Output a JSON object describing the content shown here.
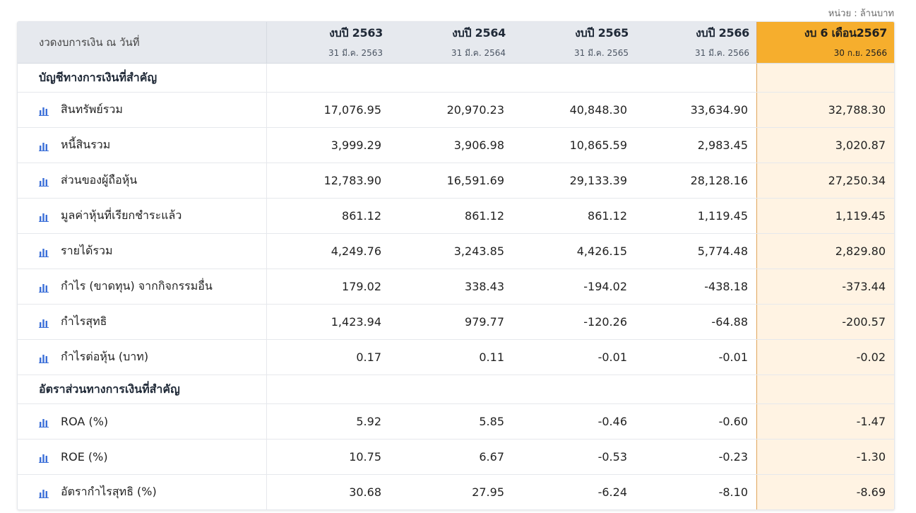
{
  "unit_label": "หน่วย : ล้านบาท",
  "header": {
    "period_label": "งวดงบการเงิน ณ วันที่",
    "columns": [
      {
        "year": "งบปี 2563",
        "date": "31 มี.ค. 2563"
      },
      {
        "year": "งบปี 2564",
        "date": "31 มี.ค. 2564"
      },
      {
        "year": "งบปี 2565",
        "date": "31 มี.ค. 2565"
      },
      {
        "year": "งบปี 2566",
        "date": "31 มี.ค. 2566"
      },
      {
        "year": "งบ 6 เดือน2567",
        "date": "30 ก.ย. 2566"
      }
    ]
  },
  "sections": [
    {
      "title": "บัญชีทางการเงินที่สำคัญ",
      "rows": [
        {
          "label": "สินทรัพย์รวม",
          "values": [
            "17,076.95",
            "20,970.23",
            "40,848.30",
            "33,634.90",
            "32,788.30"
          ]
        },
        {
          "label": "หนี้สินรวม",
          "values": [
            "3,999.29",
            "3,906.98",
            "10,865.59",
            "2,983.45",
            "3,020.87"
          ]
        },
        {
          "label": "ส่วนของผู้ถือหุ้น",
          "values": [
            "12,783.90",
            "16,591.69",
            "29,133.39",
            "28,128.16",
            "27,250.34"
          ]
        },
        {
          "label": "มูลค่าหุ้นที่เรียกชำระแล้ว",
          "values": [
            "861.12",
            "861.12",
            "861.12",
            "1,119.45",
            "1,119.45"
          ]
        },
        {
          "label": "รายได้รวม",
          "values": [
            "4,249.76",
            "3,243.85",
            "4,426.15",
            "5,774.48",
            "2,829.80"
          ]
        },
        {
          "label": "กำไร (ขาดทุน) จากกิจกรรมอื่น",
          "values": [
            "179.02",
            "338.43",
            "-194.02",
            "-438.18",
            "-373.44"
          ]
        },
        {
          "label": "กำไรสุทธิ",
          "values": [
            "1,423.94",
            "979.77",
            "-120.26",
            "-64.88",
            "-200.57"
          ]
        },
        {
          "label": "กำไรต่อหุ้น (บาท)",
          "values": [
            "0.17",
            "0.11",
            "-0.01",
            "-0.01",
            "-0.02"
          ]
        }
      ]
    },
    {
      "title": "อัตราส่วนทางการเงินที่สำคัญ",
      "rows": [
        {
          "label": "ROA (%)",
          "values": [
            "5.92",
            "5.85",
            "-0.46",
            "-0.60",
            "-1.47"
          ]
        },
        {
          "label": "ROE (%)",
          "values": [
            "10.75",
            "6.67",
            "-0.53",
            "-0.23",
            "-1.30"
          ]
        },
        {
          "label": "อัตรากำไรสุทธิ (%)",
          "values": [
            "30.68",
            "27.95",
            "-6.24",
            "-8.10",
            "-8.69"
          ]
        }
      ]
    }
  ],
  "icons": {
    "row_icon": "bar-chart-icon"
  },
  "colors": {
    "highlight_header": "#f6ae2d",
    "highlight_column": "#fff3e3",
    "icon": "#3b6fd8"
  }
}
